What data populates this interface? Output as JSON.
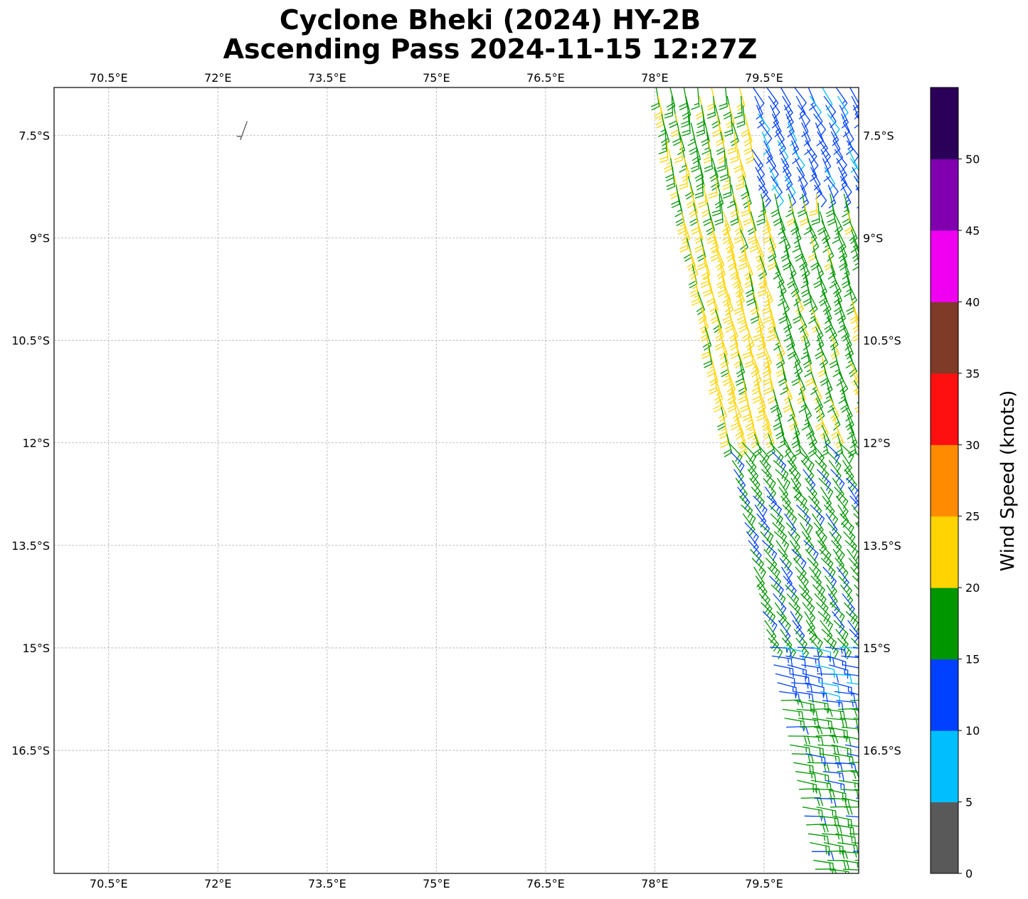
{
  "title": {
    "line1": "Cyclone Bheki (2024) HY-2B",
    "line2": "Ascending Pass 2024-11-15 12:27Z"
  },
  "map": {
    "lon_range": [
      69.75,
      80.8
    ],
    "lat_range": [
      -18.3,
      -6.8
    ],
    "lon_ticks": [
      {
        "value": 70.5,
        "label": "70.5°E"
      },
      {
        "value": 72,
        "label": "72°E"
      },
      {
        "value": 73.5,
        "label": "73.5°E"
      },
      {
        "value": 75,
        "label": "75°E"
      },
      {
        "value": 76.5,
        "label": "76.5°E"
      },
      {
        "value": 78,
        "label": "78°E"
      },
      {
        "value": 79.5,
        "label": "79.5°E"
      }
    ],
    "lat_ticks": [
      {
        "value": -7.5,
        "label": "7.5°S"
      },
      {
        "value": -9,
        "label": "9°S"
      },
      {
        "value": -10.5,
        "label": "10.5°S"
      },
      {
        "value": -12,
        "label": "12°S"
      },
      {
        "value": -13.5,
        "label": "13.5°S"
      },
      {
        "value": -15,
        "label": "15°S"
      },
      {
        "value": -16.5,
        "label": "16.5°S"
      }
    ],
    "gridlines": true,
    "grid_color": "#b0b0b0"
  },
  "colorbar": {
    "label": "Wind Speed (knots)",
    "ticks": [
      "0",
      "5",
      "10",
      "15",
      "20",
      "25",
      "30",
      "35",
      "40",
      "45",
      "50"
    ],
    "bins": [
      {
        "min": 0,
        "max": 5,
        "color": "#595959"
      },
      {
        "min": 5,
        "max": 10,
        "color": "#00bfff"
      },
      {
        "min": 10,
        "max": 15,
        "color": "#0040ff"
      },
      {
        "min": 15,
        "max": 20,
        "color": "#009600"
      },
      {
        "min": 20,
        "max": 25,
        "color": "#ffd400"
      },
      {
        "min": 25,
        "max": 30,
        "color": "#ff8c00"
      },
      {
        "min": 30,
        "max": 35,
        "color": "#ff1010"
      },
      {
        "min": 35,
        "max": 40,
        "color": "#7f3a28"
      },
      {
        "min": 40,
        "max": 45,
        "color": "#f000f0"
      },
      {
        "min": 45,
        "max": 50,
        "color": "#8000b0"
      },
      {
        "min": 50,
        "max": 55,
        "color": "#2b0058"
      }
    ]
  },
  "wind_barbs": {
    "units": "knots",
    "swath": {
      "lat_north": -6.8,
      "lat_south": -18.3,
      "east_edge_lon": 80.8,
      "west_edge_top_lon": 78.0,
      "west_edge_bottom_lon": 80.2,
      "row_spacing_deg": 0.13,
      "col_spacing_deg": 0.19
    },
    "isolated": [
      {
        "lat": -7.3,
        "lon": 72.4,
        "speed": 3,
        "dir": 200
      }
    ],
    "zones": [
      {
        "lat_from": -6.8,
        "lat_to": -8.5,
        "lon_from": 78.0,
        "lon_to": 79.3,
        "speed": 20,
        "dir": 170
      },
      {
        "lat_from": -6.8,
        "lat_to": -8.3,
        "lon_from": 79.3,
        "lon_to": 80.8,
        "speed": 12,
        "dir": 150
      },
      {
        "lat_from": -8.5,
        "lat_to": -12.0,
        "lon_from": 78.0,
        "lon_to": 79.6,
        "speed": 22,
        "dir": 165
      },
      {
        "lat_from": -8.5,
        "lat_to": -12.0,
        "lon_from": 79.6,
        "lon_to": 80.8,
        "speed": 18,
        "dir": 160
      },
      {
        "lat_from": -12.0,
        "lat_to": -14.9,
        "lon_from": 78.0,
        "lon_to": 80.8,
        "speed": 17,
        "dir": 140
      },
      {
        "lat_from": -14.9,
        "lat_to": -15.7,
        "lon_from": 78.0,
        "lon_to": 80.8,
        "speed": 12,
        "dir": 100
      },
      {
        "lat_from": -15.7,
        "lat_to": -18.3,
        "lon_from": 78.0,
        "lon_to": 80.8,
        "speed": 17,
        "dir": 95
      }
    ]
  }
}
